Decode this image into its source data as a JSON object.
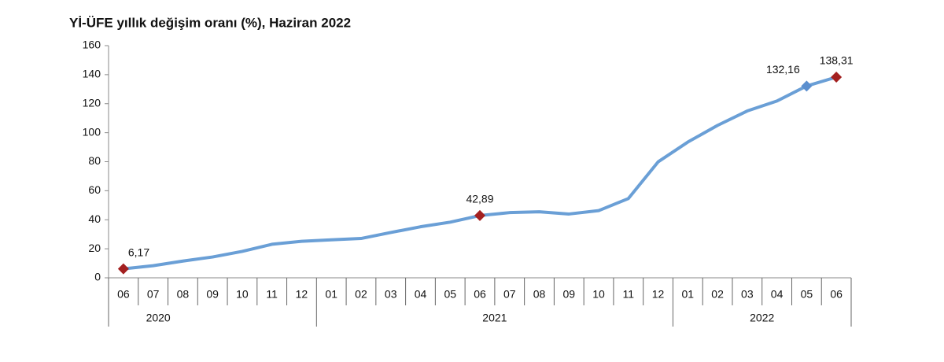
{
  "chart_data": {
    "type": "line",
    "title": "Yİ-ÜFE yıllık değişim oranı (%), Haziran 2022",
    "categories": [
      "06",
      "07",
      "08",
      "09",
      "10",
      "11",
      "12",
      "01",
      "02",
      "03",
      "04",
      "05",
      "06",
      "07",
      "08",
      "09",
      "10",
      "11",
      "12",
      "01",
      "02",
      "03",
      "04",
      "05",
      "06"
    ],
    "years": [
      "2020",
      "2021",
      "2022"
    ],
    "values": [
      6.17,
      8.33,
      11.53,
      14.33,
      18.2,
      23.11,
      25.15,
      26.16,
      27.09,
      31.2,
      35.17,
      38.33,
      42.89,
      44.92,
      45.52,
      43.96,
      46.31,
      54.62,
      79.89,
      93.53,
      105.01,
      114.97,
      121.82,
      132.16,
      138.31
    ],
    "value_labels": [
      "6,17",
      null,
      null,
      null,
      null,
      null,
      null,
      null,
      null,
      null,
      null,
      null,
      "42,89",
      null,
      null,
      null,
      null,
      null,
      null,
      null,
      null,
      null,
      null,
      "132,16",
      "138,31"
    ],
    "marker_colors": [
      "#a32020",
      null,
      null,
      null,
      null,
      null,
      null,
      null,
      null,
      null,
      null,
      null,
      "#a32020",
      null,
      null,
      null,
      null,
      null,
      null,
      null,
      null,
      null,
      null,
      "#5b8fcf",
      "#a32020"
    ],
    "color": "#6a9fd6",
    "ylim": [
      0,
      160
    ],
    "yticks": [
      0,
      20,
      40,
      60,
      80,
      100,
      120,
      140,
      160
    ]
  }
}
